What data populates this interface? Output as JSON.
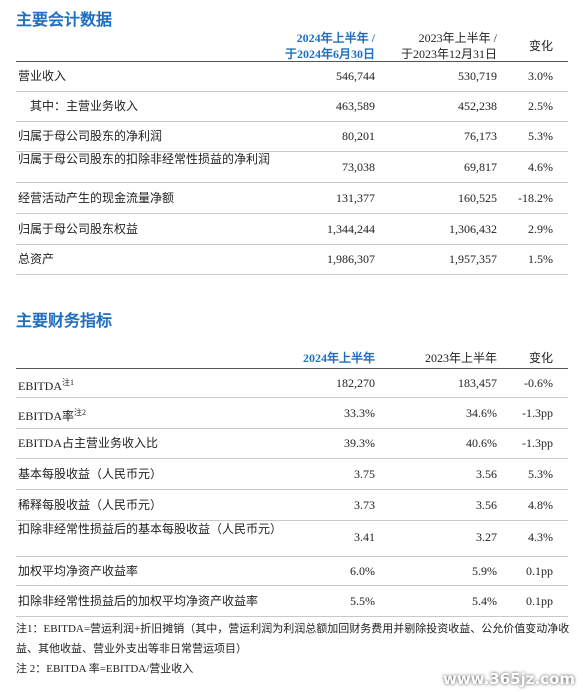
{
  "section1": {
    "title": "主要会计数据",
    "header": [
      [
        "2024年上半年 /",
        "于2024年6月30日"
      ],
      [
        "2023年上半年 /",
        "于2023年12月31日"
      ],
      [
        "变化"
      ]
    ],
    "rows": [
      {
        "label": "营业收入",
        "values": [
          "546,744",
          "530,719",
          "3.0%"
        ]
      },
      {
        "label": "其中：主营业务收入",
        "values": [
          "463,589",
          "452,238",
          "2.5%"
        ]
      },
      {
        "label": "归属于母公司股东的净利润",
        "values": [
          "80,201",
          "76,173",
          "5.3%"
        ]
      },
      {
        "label": "归属于母公司股东的扣除非经常性损益的净利润",
        "values": [
          "73,038",
          "69,817",
          "4.6%"
        ]
      },
      {
        "label": "经营活动产生的现金流量净额",
        "values": [
          "131,377",
          "160,525",
          "-18.2%"
        ]
      },
      {
        "label": "归属于母公司股东权益",
        "values": [
          "1,344,244",
          "1,306,432",
          "2.9%"
        ]
      },
      {
        "label": "总资产",
        "values": [
          "1,986,307",
          "1,957,357",
          "1.5%"
        ]
      }
    ]
  },
  "section2": {
    "title": "主要财务指标",
    "header": [
      [
        "2024年上半年"
      ],
      [
        "2023年上半年"
      ],
      [
        "变化"
      ]
    ],
    "rows": [
      {
        "label": "EBITDA",
        "note": "注1",
        "values": [
          "182,270",
          "183,457",
          "-0.6%"
        ]
      },
      {
        "label": "EBITDA率",
        "note": "注2",
        "values": [
          "33.3%",
          "34.6%",
          "-1.3pp"
        ]
      },
      {
        "label": "EBITDA占主营业务收入比",
        "values": [
          "39.3%",
          "40.6%",
          "-1.3pp"
        ]
      },
      {
        "label": "基本每股收益（人民币元）",
        "values": [
          "3.75",
          "3.56",
          "5.3%"
        ]
      },
      {
        "label": "稀释每股收益（人民币元）",
        "values": [
          "3.73",
          "3.56",
          "4.8%"
        ]
      },
      {
        "label": "扣除非经常性损益后的基本每股收益（人民币元）",
        "values": [
          "3.41",
          "3.27",
          "4.3%"
        ]
      },
      {
        "label": "加权平均净资产收益率",
        "values": [
          "6.0%",
          "5.9%",
          "0.1pp"
        ]
      },
      {
        "label": "扣除非经常性损益后的加权平均净资产收益率",
        "values": [
          "5.5%",
          "5.4%",
          "0.1pp"
        ]
      }
    ]
  },
  "footnotes": [
    "注1：EBITDA=营运利润+折旧摊销（其中，营运利润为利润总额加回财务费用并剔除投资收益、公允价值变动净收益、其他收益、营业外支出等非日常营运项目）",
    "注 2：EBITDA 率=EBITDA/营业收入"
  ],
  "watermark": "www.365jz.com"
}
